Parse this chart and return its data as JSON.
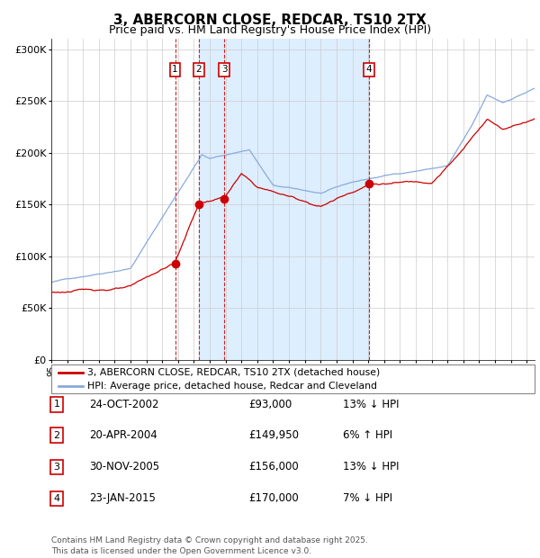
{
  "title": "3, ABERCORN CLOSE, REDCAR, TS10 2TX",
  "subtitle": "Price paid vs. HM Land Registry's House Price Index (HPI)",
  "xlim_start": 1995.0,
  "xlim_end": 2025.5,
  "ylim_min": 0,
  "ylim_max": 310000,
  "yticks": [
    0,
    50000,
    100000,
    150000,
    200000,
    250000,
    300000
  ],
  "ytick_labels": [
    "£0",
    "£50K",
    "£100K",
    "£150K",
    "£200K",
    "£250K",
    "£300K"
  ],
  "sale_dates_decimal": [
    2002.81,
    2004.31,
    2005.92,
    2015.06
  ],
  "sale_prices": [
    93000,
    149950,
    156000,
    170000
  ],
  "sale_numbers": [
    "1",
    "2",
    "3",
    "4"
  ],
  "shade_region": [
    2004.31,
    2015.06
  ],
  "vline_dates": [
    2002.81,
    2004.31,
    2005.92,
    2015.06
  ],
  "legend_property_label": "3, ABERCORN CLOSE, REDCAR, TS10 2TX (detached house)",
  "legend_hpi_label": "HPI: Average price, detached house, Redcar and Cleveland",
  "table_data": [
    [
      "1",
      "24-OCT-2002",
      "£93,000",
      "13% ↓ HPI"
    ],
    [
      "2",
      "20-APR-2004",
      "£149,950",
      "6% ↑ HPI"
    ],
    [
      "3",
      "30-NOV-2005",
      "£156,000",
      "13% ↓ HPI"
    ],
    [
      "4",
      "23-JAN-2015",
      "£170,000",
      "7% ↓ HPI"
    ]
  ],
  "footer": "Contains HM Land Registry data © Crown copyright and database right 2025.\nThis data is licensed under the Open Government Licence v3.0.",
  "property_line_color": "#cc0000",
  "hpi_line_color": "#88aadd",
  "shade_color": "#ddeeff",
  "vline_color": "#cc0000",
  "dot_color": "#cc0000",
  "grid_color": "#cccccc",
  "background_color": "#ffffff",
  "box_color": "#cc0000"
}
